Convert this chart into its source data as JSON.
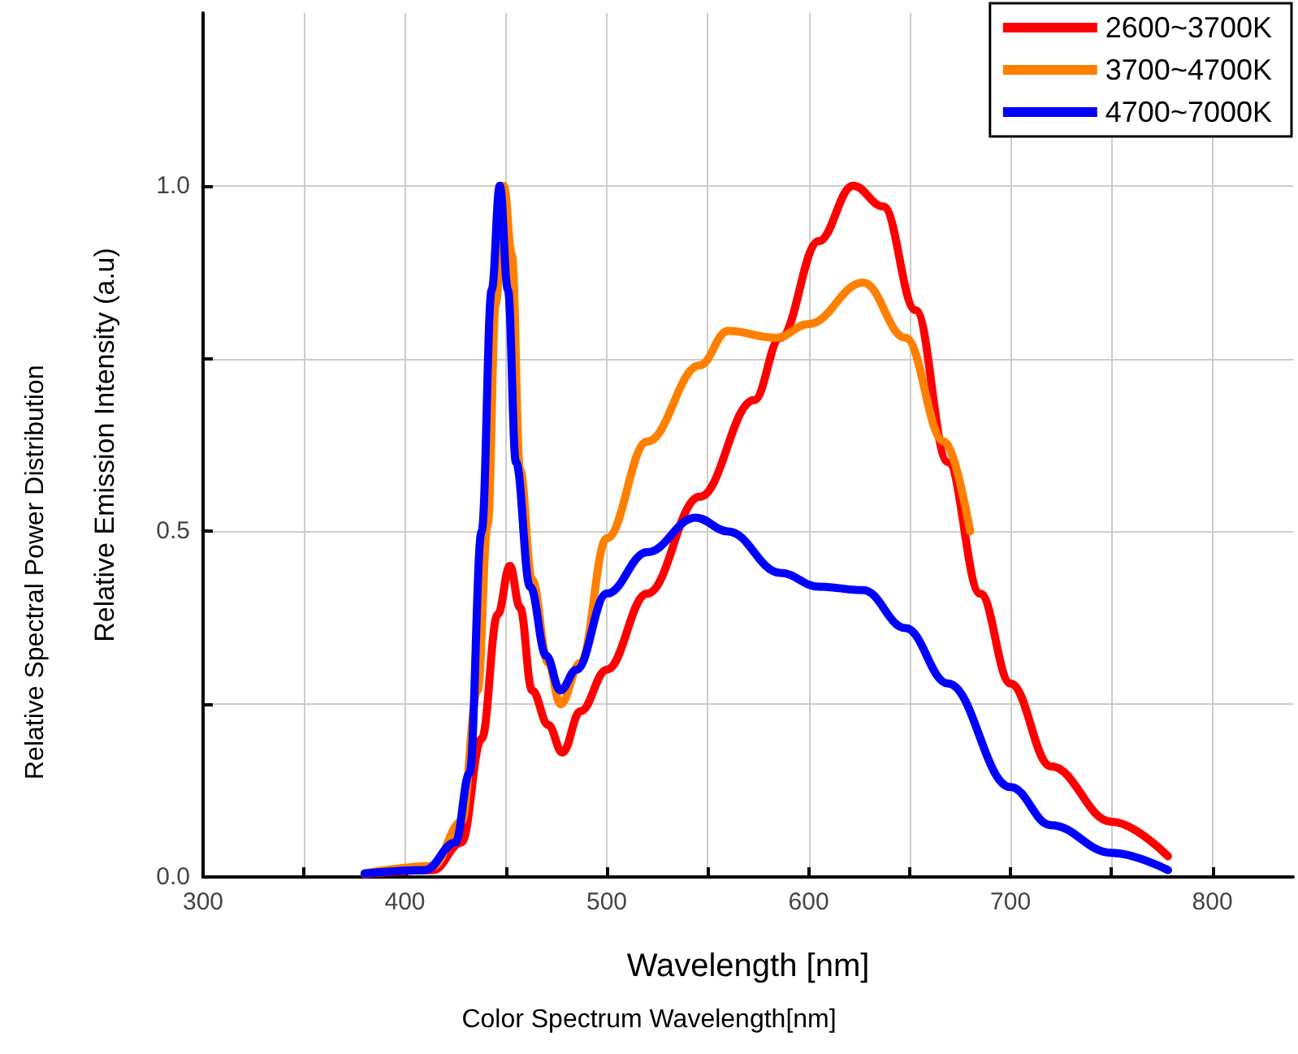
{
  "chart_data": {
    "type": "line",
    "xlabel": "Wavelength [nm]",
    "ylabel": "Relative Emission Intensity (a.u)",
    "annotations": [
      "Color Spectrum Wavelength[nm]",
      "Relative Spectral Power Distribution"
    ],
    "xlim": [
      300,
      840
    ],
    "ylim": [
      0,
      1.25
    ],
    "xticks": [
      300,
      {
        "value": 350,
        "label": null
      },
      400,
      {
        "value": 450,
        "label": null
      },
      500,
      {
        "value": 550,
        "label": null
      },
      600,
      {
        "value": 650,
        "label": null
      },
      700,
      {
        "value": 750,
        "label": null
      },
      800
    ],
    "yticks": [
      {
        "value": 0,
        "label": "0.0"
      },
      {
        "value": 0.25,
        "label": null
      },
      {
        "value": 0.5,
        "label": "0.5"
      },
      {
        "value": 0.75,
        "label": null
      },
      {
        "value": 1,
        "label": "1.0"
      }
    ],
    "grid": true,
    "legend": "top right",
    "marker": "none",
    "line_style": "solid",
    "series": [
      {
        "name": "2600~3700K",
        "color": "#ff0000",
        "x": [
          380,
          414,
          428,
          438,
          446,
          452,
          457,
          463,
          471,
          478,
          487,
          500,
          520,
          546,
          573,
          586,
          605,
          622,
          637,
          653,
          669,
          685,
          700,
          720,
          750,
          778
        ],
        "values": [
          0.004,
          0.01,
          0.05,
          0.2,
          0.38,
          0.45,
          0.39,
          0.27,
          0.22,
          0.18,
          0.24,
          0.3,
          0.41,
          0.55,
          0.69,
          0.78,
          0.92,
          1.0,
          0.97,
          0.82,
          0.6,
          0.41,
          0.28,
          0.16,
          0.08,
          0.03
        ]
      },
      {
        "name": "3700~4700K",
        "color": "#ff8000",
        "x": [
          380,
          414,
          428,
          436,
          441,
          445,
          449,
          453,
          457,
          463,
          471,
          477,
          487,
          500,
          520,
          546,
          560,
          584,
          600,
          627,
          648,
          667,
          680
        ],
        "values": [
          0.005,
          0.016,
          0.08,
          0.27,
          0.51,
          0.83,
          1.0,
          0.9,
          0.59,
          0.43,
          0.31,
          0.25,
          0.31,
          0.49,
          0.63,
          0.74,
          0.79,
          0.78,
          0.8,
          0.86,
          0.78,
          0.63,
          0.5
        ]
      },
      {
        "name": "4700~7000K",
        "color": "#0000ff",
        "x": [
          380,
          410,
          425,
          432,
          438,
          443,
          447,
          451,
          455,
          462,
          470,
          477,
          485,
          500,
          520,
          544,
          560,
          586,
          605,
          627,
          648,
          669,
          700,
          720,
          750,
          778
        ],
        "values": [
          0.005,
          0.01,
          0.05,
          0.15,
          0.5,
          0.85,
          1.0,
          0.85,
          0.6,
          0.42,
          0.32,
          0.27,
          0.3,
          0.41,
          0.47,
          0.52,
          0.5,
          0.44,
          0.42,
          0.415,
          0.36,
          0.28,
          0.13,
          0.075,
          0.035,
          0.01
        ]
      }
    ]
  }
}
